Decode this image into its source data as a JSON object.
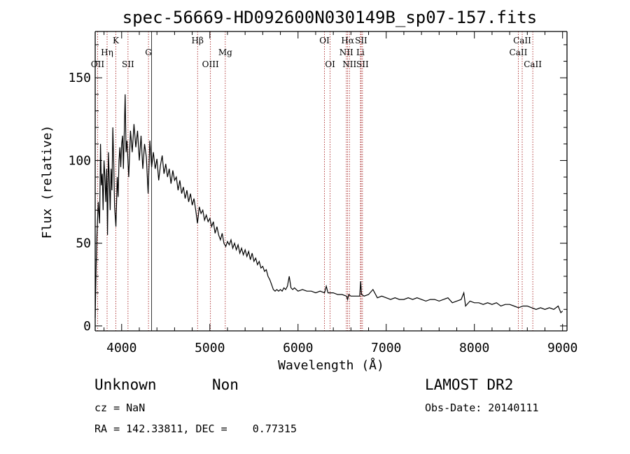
{
  "chart_data": {
    "type": "line",
    "title": "spec-56669-HD092600N030149B_sp07-157.fits",
    "xlabel": "Wavelength (Å)",
    "ylabel": "Flux (relative)",
    "xlim": [
      3700,
      9050
    ],
    "ylim": [
      -3,
      178
    ],
    "x_ticks": [
      4000,
      5000,
      6000,
      7000,
      8000,
      9000
    ],
    "y_ticks": [
      0,
      50,
      100,
      150
    ],
    "grid": false,
    "series": [
      {
        "color": "#000000",
        "points": [
          [
            3700,
            5
          ],
          [
            3710,
            35
          ],
          [
            3720,
            55
          ],
          [
            3735,
            75
          ],
          [
            3750,
            62
          ],
          [
            3760,
            110
          ],
          [
            3770,
            85
          ],
          [
            3780,
            92
          ],
          [
            3790,
            70
          ],
          [
            3800,
            100
          ],
          [
            3810,
            90
          ],
          [
            3820,
            75
          ],
          [
            3830,
            95
          ],
          [
            3840,
            55
          ],
          [
            3850,
            105
          ],
          [
            3860,
            88
          ],
          [
            3870,
            70
          ],
          [
            3880,
            95
          ],
          [
            3890,
            82
          ],
          [
            3900,
            120
          ],
          [
            3910,
            98
          ],
          [
            3920,
            72
          ],
          [
            3935,
            60
          ],
          [
            3950,
            90
          ],
          [
            3960,
            78
          ],
          [
            3970,
            100
          ],
          [
            3980,
            108
          ],
          [
            3990,
            96
          ],
          [
            4000,
            110
          ],
          [
            4010,
            115
          ],
          [
            4020,
            95
          ],
          [
            4030,
            118
          ],
          [
            4040,
            140
          ],
          [
            4050,
            105
          ],
          [
            4060,
            112
          ],
          [
            4080,
            90
          ],
          [
            4100,
            118
          ],
          [
            4120,
            105
          ],
          [
            4140,
            122
          ],
          [
            4160,
            108
          ],
          [
            4180,
            118
          ],
          [
            4200,
            100
          ],
          [
            4220,
            115
          ],
          [
            4240,
            95
          ],
          [
            4260,
            110
          ],
          [
            4280,
            102
          ],
          [
            4300,
            80
          ],
          [
            4320,
            112
          ],
          [
            4340,
            96
          ],
          [
            4360,
            105
          ],
          [
            4380,
            95
          ],
          [
            4400,
            101
          ],
          [
            4420,
            88
          ],
          [
            4440,
            97
          ],
          [
            4460,
            103
          ],
          [
            4480,
            92
          ],
          [
            4500,
            98
          ],
          [
            4520,
            90
          ],
          [
            4540,
            95
          ],
          [
            4560,
            86
          ],
          [
            4580,
            94
          ],
          [
            4600,
            88
          ],
          [
            4620,
            90
          ],
          [
            4640,
            82
          ],
          [
            4660,
            88
          ],
          [
            4680,
            80
          ],
          [
            4700,
            84
          ],
          [
            4720,
            77
          ],
          [
            4740,
            82
          ],
          [
            4760,
            75
          ],
          [
            4780,
            80
          ],
          [
            4800,
            73
          ],
          [
            4820,
            77
          ],
          [
            4840,
            70
          ],
          [
            4860,
            62
          ],
          [
            4880,
            72
          ],
          [
            4900,
            68
          ],
          [
            4920,
            70
          ],
          [
            4940,
            64
          ],
          [
            4960,
            67
          ],
          [
            4980,
            63
          ],
          [
            5000,
            65
          ],
          [
            5020,
            60
          ],
          [
            5040,
            63
          ],
          [
            5060,
            56
          ],
          [
            5080,
            60
          ],
          [
            5100,
            55
          ],
          [
            5120,
            52
          ],
          [
            5140,
            56
          ],
          [
            5160,
            50
          ],
          [
            5180,
            48
          ],
          [
            5200,
            51
          ],
          [
            5220,
            49
          ],
          [
            5240,
            52
          ],
          [
            5260,
            47
          ],
          [
            5280,
            50
          ],
          [
            5300,
            46
          ],
          [
            5320,
            49
          ],
          [
            5340,
            44
          ],
          [
            5360,
            47
          ],
          [
            5380,
            43
          ],
          [
            5400,
            46
          ],
          [
            5420,
            42
          ],
          [
            5440,
            45
          ],
          [
            5460,
            40
          ],
          [
            5480,
            44
          ],
          [
            5500,
            39
          ],
          [
            5520,
            41
          ],
          [
            5540,
            37
          ],
          [
            5560,
            39
          ],
          [
            5580,
            35
          ],
          [
            5600,
            36
          ],
          [
            5620,
            33
          ],
          [
            5640,
            34
          ],
          [
            5660,
            30
          ],
          [
            5680,
            28
          ],
          [
            5700,
            25
          ],
          [
            5720,
            22
          ],
          [
            5740,
            21
          ],
          [
            5760,
            22
          ],
          [
            5780,
            21
          ],
          [
            5800,
            22
          ],
          [
            5820,
            21
          ],
          [
            5840,
            23
          ],
          [
            5860,
            22
          ],
          [
            5880,
            24
          ],
          [
            5900,
            30
          ],
          [
            5920,
            23
          ],
          [
            5940,
            22
          ],
          [
            5960,
            23
          ],
          [
            5980,
            22
          ],
          [
            6000,
            21
          ],
          [
            6050,
            22
          ],
          [
            6100,
            21
          ],
          [
            6150,
            21
          ],
          [
            6200,
            20
          ],
          [
            6250,
            21
          ],
          [
            6300,
            20
          ],
          [
            6320,
            24
          ],
          [
            6340,
            20
          ],
          [
            6400,
            20
          ],
          [
            6450,
            19
          ],
          [
            6500,
            19
          ],
          [
            6550,
            18
          ],
          [
            6562,
            16
          ],
          [
            6575,
            19
          ],
          [
            6600,
            18
          ],
          [
            6650,
            18
          ],
          [
            6700,
            18
          ],
          [
            6710,
            27
          ],
          [
            6720,
            19
          ],
          [
            6750,
            18
          ],
          [
            6800,
            19
          ],
          [
            6850,
            22
          ],
          [
            6900,
            17
          ],
          [
            6950,
            18
          ],
          [
            7000,
            17
          ],
          [
            7050,
            16
          ],
          [
            7100,
            17
          ],
          [
            7150,
            16
          ],
          [
            7200,
            16
          ],
          [
            7250,
            17
          ],
          [
            7300,
            16
          ],
          [
            7350,
            17
          ],
          [
            7400,
            16
          ],
          [
            7450,
            15
          ],
          [
            7500,
            16
          ],
          [
            7550,
            16
          ],
          [
            7600,
            15
          ],
          [
            7650,
            16
          ],
          [
            7700,
            17
          ],
          [
            7750,
            14
          ],
          [
            7800,
            15
          ],
          [
            7850,
            16
          ],
          [
            7880,
            20
          ],
          [
            7900,
            12
          ],
          [
            7950,
            15
          ],
          [
            8000,
            14
          ],
          [
            8050,
            14
          ],
          [
            8100,
            13
          ],
          [
            8150,
            14
          ],
          [
            8200,
            13
          ],
          [
            8250,
            14
          ],
          [
            8300,
            12
          ],
          [
            8350,
            13
          ],
          [
            8400,
            13
          ],
          [
            8450,
            12
          ],
          [
            8500,
            11
          ],
          [
            8550,
            12
          ],
          [
            8600,
            12
          ],
          [
            8650,
            11
          ],
          [
            8700,
            10
          ],
          [
            8750,
            11
          ],
          [
            8800,
            10
          ],
          [
            8850,
            11
          ],
          [
            8900,
            10
          ],
          [
            8950,
            12
          ],
          [
            8980,
            8
          ],
          [
            9000,
            9
          ]
        ]
      }
    ],
    "lines": [
      {
        "label": "OII",
        "x": 3727,
        "row": 3
      },
      {
        "label": "Hη",
        "x": 3835,
        "row": 2
      },
      {
        "label": "K",
        "x": 3934,
        "row": 1
      },
      {
        "label": "SII",
        "x": 4072,
        "row": 3
      },
      {
        "label": "G",
        "x": 4304,
        "row": 2
      },
      {
        "label": "Hβ",
        "x": 4861,
        "row": 1
      },
      {
        "label": "OIII",
        "x": 5007,
        "row": 3
      },
      {
        "label": "Mg",
        "x": 5175,
        "row": 2
      },
      {
        "label": "OI",
        "x": 6300,
        "row": 1
      },
      {
        "label": "OI",
        "x": 6364,
        "row": 3
      },
      {
        "label": "NII",
        "x": 6548,
        "row": 2
      },
      {
        "label": "Hα",
        "x": 6563,
        "row": 1
      },
      {
        "label": "NII",
        "x": 6583,
        "row": 3
      },
      {
        "label": "SII",
        "x": 6716,
        "row": 1
      },
      {
        "label": "Li",
        "x": 6708,
        "row": 2
      },
      {
        "label": "SII",
        "x": 6731,
        "row": 3
      },
      {
        "label": "CaII",
        "x": 8498,
        "row": 2
      },
      {
        "label": "CaII",
        "x": 8542,
        "row": 1
      },
      {
        "label": "CaII",
        "x": 8662,
        "row": 3
      }
    ]
  },
  "info": {
    "object_class": "Unknown",
    "subclass": "Non",
    "survey": "LAMOST DR2",
    "redshift": "cz = NaN",
    "obs_date": "Obs-Date: 20140111",
    "coords": "RA = 142.33811, DEC =    0.77315"
  }
}
